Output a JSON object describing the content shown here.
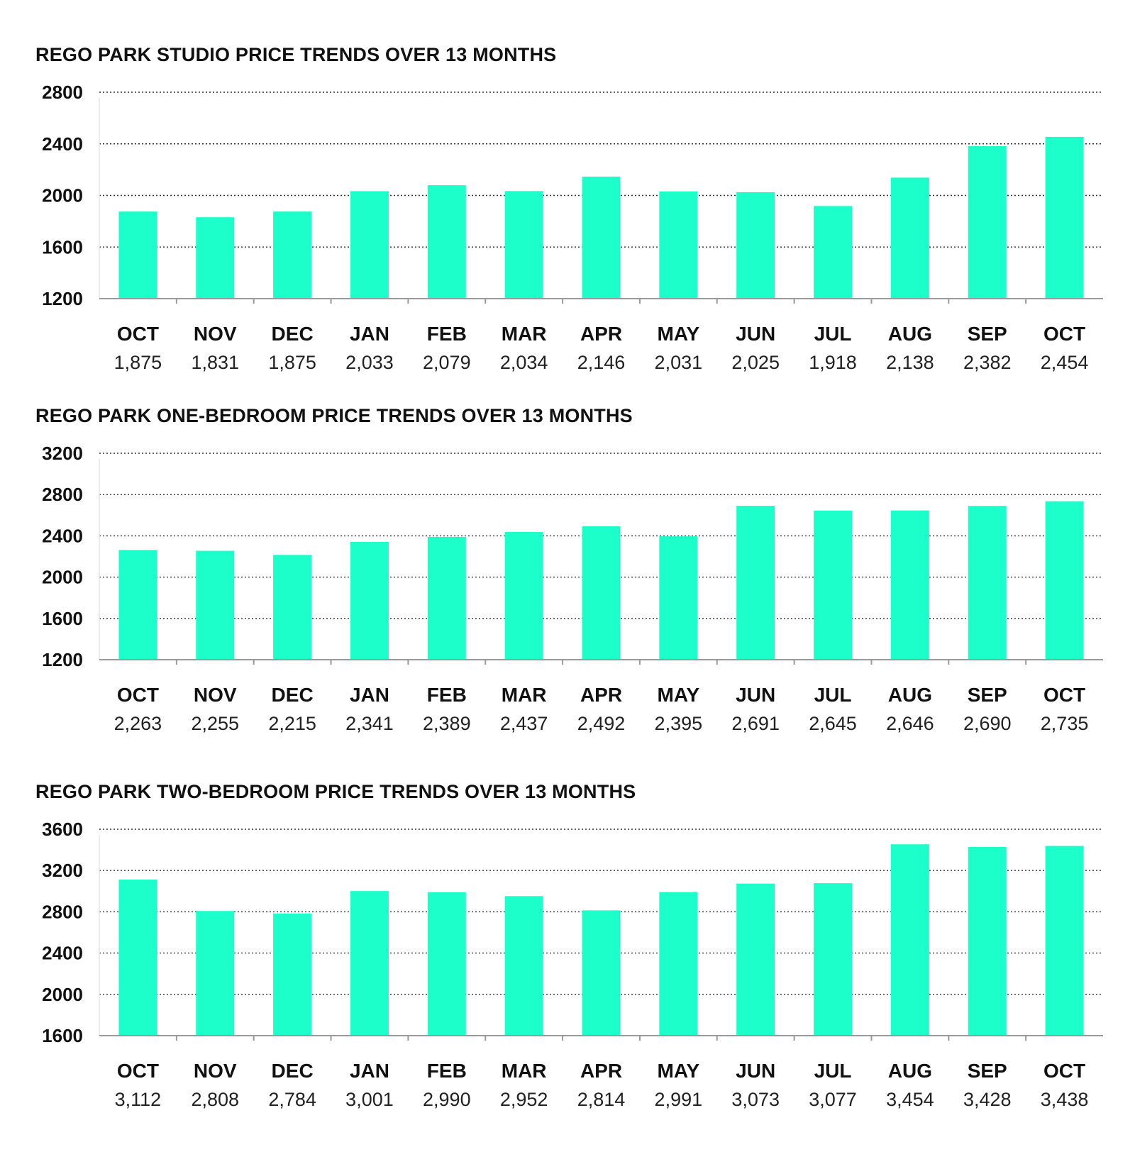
{
  "colors": {
    "bar": "#1dffcb",
    "axis": "#9a9a9a",
    "grid": "#333333",
    "text": "#111111"
  },
  "chart_data": [
    {
      "type": "bar",
      "title": "REGO PARK STUDIO PRICE TRENDS OVER 13 MONTHS",
      "categories": [
        "OCT",
        "NOV",
        "DEC",
        "JAN",
        "FEB",
        "MAR",
        "APR",
        "MAY",
        "JUN",
        "JUL",
        "AUG",
        "SEP",
        "OCT"
      ],
      "values": [
        1875,
        1831,
        1875,
        2033,
        2079,
        2034,
        2146,
        2031,
        2025,
        1918,
        2138,
        2382,
        2454
      ],
      "value_labels": [
        "1,875",
        "1,831",
        "1,875",
        "2,033",
        "2,079",
        "2,034",
        "2,146",
        "2,031",
        "2,025",
        "1,918",
        "2,138",
        "2,382",
        "2,454"
      ],
      "ylim": [
        1200,
        2800
      ],
      "yticks": [
        1200,
        1600,
        2000,
        2400,
        2800
      ],
      "grid": true
    },
    {
      "type": "bar",
      "title": "REGO PARK ONE-BEDROOM PRICE TRENDS OVER 13 MONTHS",
      "categories": [
        "OCT",
        "NOV",
        "DEC",
        "JAN",
        "FEB",
        "MAR",
        "APR",
        "MAY",
        "JUN",
        "JUL",
        "AUG",
        "SEP",
        "OCT"
      ],
      "values": [
        2263,
        2255,
        2215,
        2341,
        2389,
        2437,
        2492,
        2395,
        2691,
        2645,
        2646,
        2690,
        2735
      ],
      "value_labels": [
        "2,263",
        "2,255",
        "2,215",
        "2,341",
        "2,389",
        "2,437",
        "2,492",
        "2,395",
        "2,691",
        "2,645",
        "2,646",
        "2,690",
        "2,735"
      ],
      "ylim": [
        1200,
        3200
      ],
      "yticks": [
        1200,
        1600,
        2000,
        2400,
        2800,
        3200
      ],
      "grid": true
    },
    {
      "type": "bar",
      "title": "REGO PARK TWO-BEDROOM PRICE TRENDS OVER 13 MONTHS",
      "categories": [
        "OCT",
        "NOV",
        "DEC",
        "JAN",
        "FEB",
        "MAR",
        "APR",
        "MAY",
        "JUN",
        "JUL",
        "AUG",
        "SEP",
        "OCT"
      ],
      "values": [
        3112,
        2808,
        2784,
        3001,
        2990,
        2952,
        2814,
        2991,
        3073,
        3077,
        3454,
        3428,
        3438
      ],
      "value_labels": [
        "3,112",
        "2,808",
        "2,784",
        "3,001",
        "2,990",
        "2,952",
        "2,814",
        "2,991",
        "3,073",
        "3,077",
        "3,454",
        "3,428",
        "3,438"
      ],
      "ylim": [
        1600,
        3600
      ],
      "yticks": [
        1600,
        2000,
        2400,
        2800,
        3200,
        3600
      ],
      "grid": true
    }
  ]
}
